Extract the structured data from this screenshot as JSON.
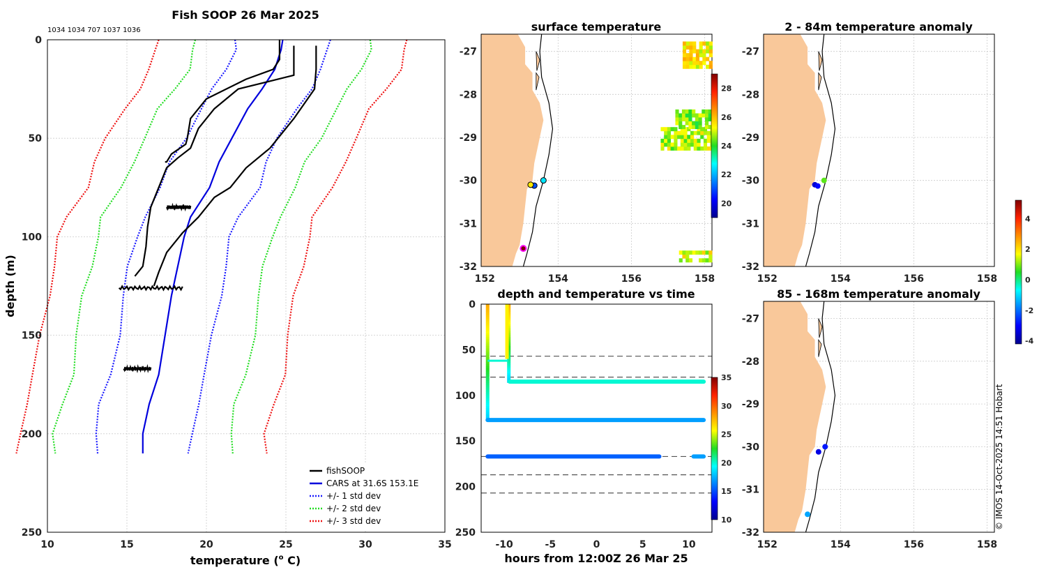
{
  "colors": {
    "land": "#f9c89a",
    "grid": "#cccccc",
    "axis": "#000000",
    "profile": "#000000",
    "cars": "#0000dd",
    "std1": "#1a1aff",
    "std2": "#22dd22",
    "std3": "#ee1111"
  },
  "copyright": "© IMOS 14-Oct-2025 14:51 Hobart",
  "chart_data": [
    {
      "id": "profile",
      "type": "line",
      "title": "Fish SOOP 26 Mar 2025",
      "subtitle": "1034 1034 707 1037 1036",
      "xlabel": "temperature (o C)",
      "xlabel_main": "temperature (",
      "xlabel_sup": "o",
      "xlabel_end": " C)",
      "ylabel": "depth (m)",
      "xlim": [
        10,
        35
      ],
      "ylim": [
        0,
        250
      ],
      "xticks": [
        10,
        15,
        20,
        25,
        30,
        35
      ],
      "yticks": [
        0,
        50,
        100,
        150,
        200,
        250
      ],
      "legend": [
        {
          "label": "fishSOOP",
          "style": "profile"
        },
        {
          "label": "CARS at 31.6S 153.1E",
          "style": "cars"
        },
        {
          "label": "+/- 1 std dev",
          "style": "std1"
        },
        {
          "label": "+/- 2 std dev",
          "style": "std2"
        },
        {
          "label": "+/- 3 std dev",
          "style": "std3"
        }
      ],
      "cars": {
        "depth": [
          0,
          5,
          15,
          25,
          35,
          50,
          62,
          75,
          90,
          100,
          115,
          130,
          150,
          170,
          185,
          200,
          210
        ],
        "temp": [
          24.8,
          24.7,
          24.3,
          23.5,
          22.6,
          21.6,
          20.8,
          20.2,
          19.0,
          18.6,
          18.2,
          17.8,
          17.4,
          17.0,
          16.4,
          16.0,
          16.0
        ]
      },
      "std_offsets": [
        -3,
        3,
        -5.5,
        5.5,
        -7.8,
        7.8
      ],
      "std_styles": [
        "std1",
        "std1",
        "std2",
        "std2",
        "std3",
        "std3"
      ],
      "fish_profiles": [
        {
          "temp": [
            24.6,
            24.6,
            24.2,
            22.5,
            20.0,
            19.0,
            18.8,
            18.7,
            17.8,
            17.5,
            17.4
          ],
          "depth": [
            0,
            10,
            15,
            20,
            30,
            40,
            50,
            53,
            58,
            62,
            62
          ]
        },
        {
          "temp": [
            25.5,
            25.5,
            25.5,
            22.0,
            20.5,
            19.5,
            19.0,
            18.2,
            17.5,
            17.0,
            16.5,
            16.3,
            16.2,
            16.0,
            15.5
          ],
          "depth": [
            3,
            15,
            18,
            25,
            35,
            45,
            55,
            60,
            65,
            75,
            85,
            95,
            105,
            115,
            120
          ]
        },
        {
          "temp": [
            26.9,
            26.9,
            26.8,
            25.5,
            24.0,
            22.5,
            21.5,
            20.5,
            19.5,
            18.5,
            17.5,
            17.0,
            16.7
          ],
          "depth": [
            3,
            15,
            25,
            40,
            55,
            65,
            75,
            80,
            90,
            98,
            108,
            118,
            125
          ]
        }
      ],
      "blobs": [
        {
          "t0": 17.5,
          "t1": 19.0,
          "d": 85
        },
        {
          "t0": 14.5,
          "t1": 18.5,
          "d": 126
        },
        {
          "t0": 14.8,
          "t1": 16.5,
          "d": 167
        }
      ]
    },
    {
      "id": "time",
      "type": "scatter",
      "title": "depth and temperature vs time",
      "xlabel": "hours from 12:00Z 26 Mar 25",
      "xlim": [
        -12.5,
        12.5
      ],
      "ylim": [
        0,
        250
      ],
      "xticks": [
        -10,
        -5,
        0,
        5,
        10
      ],
      "yticks": [
        0,
        50,
        100,
        150,
        200,
        250
      ],
      "colorbar": {
        "min": 10,
        "max": 35,
        "ticks": [
          10,
          15,
          20,
          25,
          30,
          35
        ]
      },
      "dashed_depths": [
        57,
        80,
        167,
        187,
        207
      ],
      "tracks": [
        {
          "x0": -11.8,
          "x1": 11.6,
          "depth": 127,
          "temp": 17
        },
        {
          "x0": -9.4,
          "x1": 11.6,
          "depth": 85,
          "temp": 20
        },
        {
          "x0": -11.8,
          "x1": 6.8,
          "depth": 167,
          "temp": 15.5
        },
        {
          "x0": 10.5,
          "x1": 11.6,
          "depth": 167,
          "temp": 17
        }
      ]
    },
    {
      "id": "sst",
      "type": "heatmap",
      "title": "surface temperature",
      "xlim": [
        151.9,
        158.2
      ],
      "ylim": [
        -32,
        -26.6
      ],
      "xticks": [
        152,
        154,
        156,
        158
      ],
      "yticks": [
        -32,
        -31,
        -30,
        -29,
        -28,
        -27
      ],
      "colorbar": {
        "min": 19,
        "max": 29,
        "ticks": [
          20,
          22,
          24,
          26,
          28
        ]
      },
      "points": [
        {
          "lon": 153.6,
          "lat": -30.0,
          "temp": 22.5
        },
        {
          "lon": 153.35,
          "lat": -30.12,
          "temp": 21.0
        },
        {
          "lon": 153.25,
          "lat": -30.1,
          "temp": 25.5
        },
        {
          "lon": 153.05,
          "lat": -31.58,
          "temp": 29
        }
      ]
    },
    {
      "id": "anom1",
      "type": "scatter",
      "title": "2 - 84m temperature anomaly",
      "xlim": [
        151.9,
        158.2
      ],
      "ylim": [
        -32,
        -26.6
      ],
      "xticks": [
        152,
        154,
        156,
        158
      ],
      "yticks": [
        -32,
        -31,
        -30,
        -29,
        -28,
        -27
      ],
      "points": [
        {
          "lon": 153.55,
          "lat": -30.0,
          "anom": 0.8
        },
        {
          "lon": 153.3,
          "lat": -30.1,
          "anom": -3.5
        },
        {
          "lon": 153.38,
          "lat": -30.13,
          "anom": -3.0
        }
      ]
    },
    {
      "id": "anom2",
      "type": "scatter",
      "title": "85 - 168m temperature anomaly",
      "xlim": [
        151.9,
        158.2
      ],
      "ylim": [
        -32,
        -26.6
      ],
      "xticks": [
        152,
        154,
        156,
        158
      ],
      "yticks": [
        -32,
        -31,
        -30,
        -29,
        -28,
        -27
      ],
      "colorbar": {
        "min": -4.2,
        "max": 5.2,
        "ticks": [
          -4,
          -2,
          0,
          2,
          4
        ]
      },
      "points": [
        {
          "lon": 153.58,
          "lat": -30.0,
          "anom": -2.8
        },
        {
          "lon": 153.4,
          "lat": -30.12,
          "anom": -3.3
        },
        {
          "lon": 153.1,
          "lat": -31.58,
          "anom": -1.5
        }
      ]
    }
  ]
}
